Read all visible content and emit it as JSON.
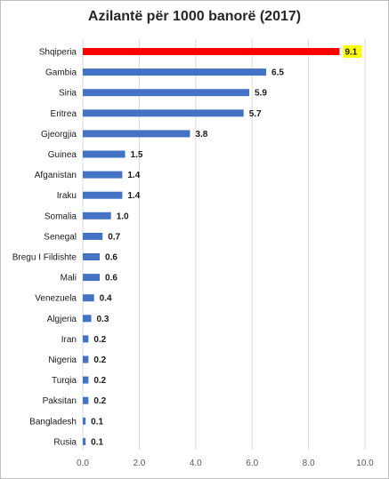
{
  "chart_data": {
    "type": "bar",
    "orientation": "horizontal",
    "title": "Azilantë për 1000 banorë (2017)",
    "xlabel": "",
    "ylabel": "",
    "categories": [
      "Shqiperia",
      "Gambia",
      "Siria",
      "Eritrea",
      "Gjeorgjia",
      "Guinea",
      "Afganistan",
      "Iraku",
      "Somalia",
      "Senegal",
      "Bregu I Fildishte",
      "Mali",
      "Venezuela",
      "Algjeria",
      "Iran",
      "Nigeria",
      "Turqia",
      "Paksitan",
      "Bangladesh",
      "Rusia"
    ],
    "values": [
      9.1,
      6.5,
      5.9,
      5.7,
      3.8,
      1.5,
      1.4,
      1.4,
      1.0,
      0.7,
      0.6,
      0.6,
      0.4,
      0.3,
      0.2,
      0.2,
      0.2,
      0.2,
      0.1,
      0.1
    ],
    "value_labels": [
      "9.1",
      "6.5",
      "5.9",
      "5.7",
      "3.8",
      "1.5",
      "1.4",
      "1.4",
      "1.0",
      "0.7",
      "0.6",
      "0.6",
      "0.4",
      "0.3",
      "0.2",
      "0.2",
      "0.2",
      "0.2",
      "0.1",
      "0.1"
    ],
    "xlim": [
      0,
      10
    ],
    "xticks": [
      0,
      2,
      4,
      6,
      8,
      10
    ],
    "xtick_labels": [
      "0.0",
      "2.0",
      "4.0",
      "6.0",
      "8.0",
      "10.0"
    ],
    "grid": true,
    "colors": {
      "default": "#4472c4",
      "highlight": "#ff0000",
      "highlight_label_bg": "#ffff00",
      "grid": "#d9d9d9"
    },
    "highlight_index": 0
  }
}
